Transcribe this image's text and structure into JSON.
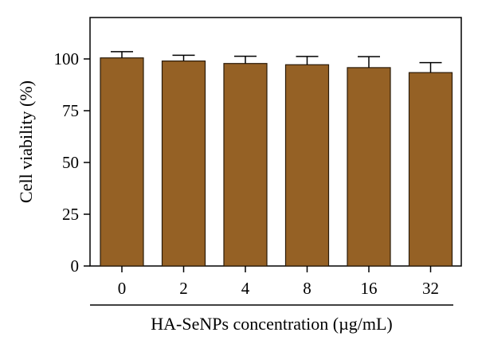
{
  "chart_data": {
    "type": "bar",
    "categories": [
      "0",
      "2",
      "4",
      "8",
      "16",
      "32"
    ],
    "values": [
      100.5,
      99.0,
      97.8,
      97.2,
      95.8,
      93.4
    ],
    "errors": [
      3.0,
      2.8,
      3.5,
      4.0,
      5.3,
      4.8
    ],
    "xlabel": "HA-SeNPs concentration (µg/mL)",
    "ylabel": "Cell viability (%)",
    "ylim": [
      0,
      120
    ],
    "yticks": [
      0,
      25,
      50,
      75,
      100
    ],
    "grid": false,
    "bar_color": "#956125",
    "edge_color": "#2a1a08"
  }
}
